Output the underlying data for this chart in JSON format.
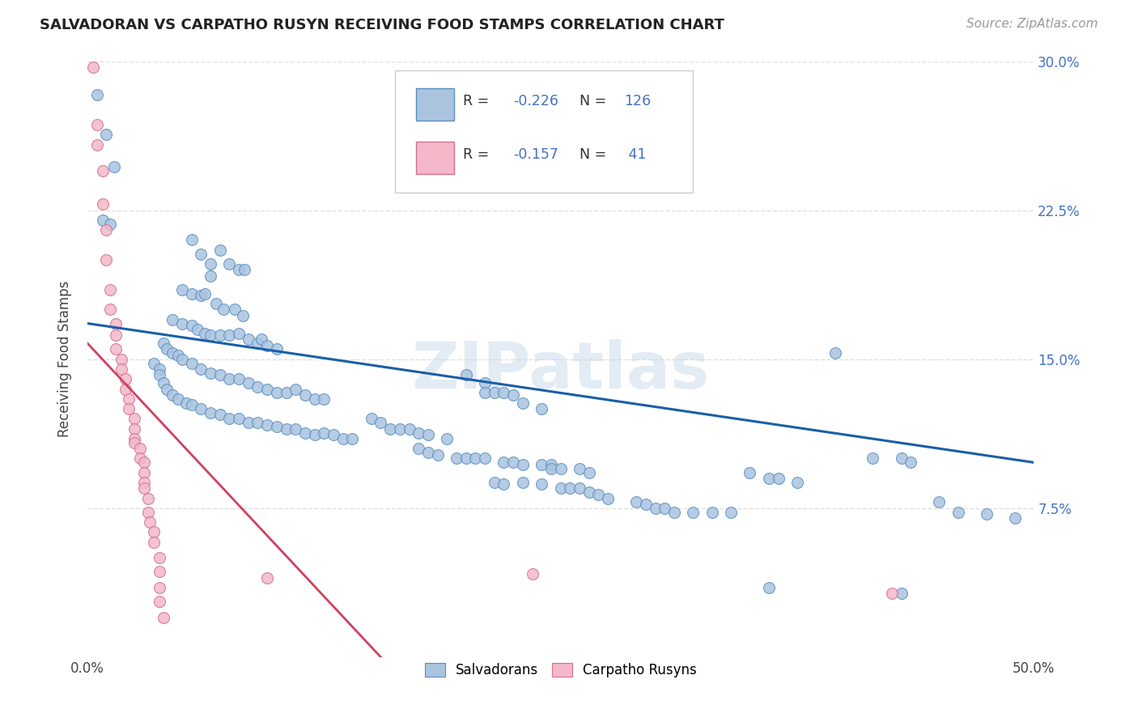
{
  "title": "SALVADORAN VS CARPATHO RUSYN RECEIVING FOOD STAMPS CORRELATION CHART",
  "source": "Source: ZipAtlas.com",
  "ylabel": "Receiving Food Stamps",
  "xlim": [
    0.0,
    0.5
  ],
  "ylim": [
    0.0,
    0.3
  ],
  "background_color": "#ffffff",
  "grid_color": "#e0e0e0",
  "watermark": "ZIPatlas",
  "blue_color": "#aac4e0",
  "blue_edge_color": "#5a8fc0",
  "pink_color": "#f4b8c8",
  "pink_edge_color": "#d07090",
  "blue_line_color": "#1a5fa8",
  "pink_line_color": "#d04060",
  "blue_scatter": [
    [
      0.005,
      0.283
    ],
    [
      0.01,
      0.263
    ],
    [
      0.014,
      0.247
    ],
    [
      0.008,
      0.22
    ],
    [
      0.012,
      0.218
    ],
    [
      0.055,
      0.21
    ],
    [
      0.06,
      0.203
    ],
    [
      0.065,
      0.198
    ],
    [
      0.065,
      0.192
    ],
    [
      0.07,
      0.205
    ],
    [
      0.075,
      0.198
    ],
    [
      0.08,
      0.195
    ],
    [
      0.083,
      0.195
    ],
    [
      0.05,
      0.185
    ],
    [
      0.055,
      0.183
    ],
    [
      0.06,
      0.182
    ],
    [
      0.062,
      0.183
    ],
    [
      0.068,
      0.178
    ],
    [
      0.072,
      0.175
    ],
    [
      0.078,
      0.175
    ],
    [
      0.082,
      0.172
    ],
    [
      0.045,
      0.17
    ],
    [
      0.05,
      0.168
    ],
    [
      0.055,
      0.167
    ],
    [
      0.058,
      0.165
    ],
    [
      0.062,
      0.163
    ],
    [
      0.065,
      0.162
    ],
    [
      0.07,
      0.162
    ],
    [
      0.075,
      0.162
    ],
    [
      0.08,
      0.163
    ],
    [
      0.085,
      0.16
    ],
    [
      0.09,
      0.158
    ],
    [
      0.092,
      0.16
    ],
    [
      0.095,
      0.157
    ],
    [
      0.1,
      0.155
    ],
    [
      0.04,
      0.158
    ],
    [
      0.042,
      0.155
    ],
    [
      0.045,
      0.153
    ],
    [
      0.048,
      0.152
    ],
    [
      0.05,
      0.15
    ],
    [
      0.055,
      0.148
    ],
    [
      0.06,
      0.145
    ],
    [
      0.065,
      0.143
    ],
    [
      0.07,
      0.142
    ],
    [
      0.075,
      0.14
    ],
    [
      0.08,
      0.14
    ],
    [
      0.085,
      0.138
    ],
    [
      0.09,
      0.136
    ],
    [
      0.095,
      0.135
    ],
    [
      0.1,
      0.133
    ],
    [
      0.105,
      0.133
    ],
    [
      0.11,
      0.135
    ],
    [
      0.115,
      0.132
    ],
    [
      0.12,
      0.13
    ],
    [
      0.125,
      0.13
    ],
    [
      0.035,
      0.148
    ],
    [
      0.038,
      0.145
    ],
    [
      0.038,
      0.142
    ],
    [
      0.04,
      0.138
    ],
    [
      0.042,
      0.135
    ],
    [
      0.045,
      0.132
    ],
    [
      0.048,
      0.13
    ],
    [
      0.052,
      0.128
    ],
    [
      0.055,
      0.127
    ],
    [
      0.06,
      0.125
    ],
    [
      0.065,
      0.123
    ],
    [
      0.07,
      0.122
    ],
    [
      0.075,
      0.12
    ],
    [
      0.08,
      0.12
    ],
    [
      0.085,
      0.118
    ],
    [
      0.09,
      0.118
    ],
    [
      0.095,
      0.117
    ],
    [
      0.1,
      0.116
    ],
    [
      0.105,
      0.115
    ],
    [
      0.11,
      0.115
    ],
    [
      0.115,
      0.113
    ],
    [
      0.12,
      0.112
    ],
    [
      0.125,
      0.113
    ],
    [
      0.13,
      0.112
    ],
    [
      0.135,
      0.11
    ],
    [
      0.14,
      0.11
    ],
    [
      0.15,
      0.12
    ],
    [
      0.155,
      0.118
    ],
    [
      0.16,
      0.115
    ],
    [
      0.165,
      0.115
    ],
    [
      0.17,
      0.115
    ],
    [
      0.175,
      0.113
    ],
    [
      0.18,
      0.112
    ],
    [
      0.19,
      0.11
    ],
    [
      0.2,
      0.142
    ],
    [
      0.21,
      0.138
    ],
    [
      0.21,
      0.133
    ],
    [
      0.215,
      0.133
    ],
    [
      0.22,
      0.133
    ],
    [
      0.225,
      0.132
    ],
    [
      0.23,
      0.128
    ],
    [
      0.24,
      0.125
    ],
    [
      0.175,
      0.105
    ],
    [
      0.18,
      0.103
    ],
    [
      0.185,
      0.102
    ],
    [
      0.195,
      0.1
    ],
    [
      0.2,
      0.1
    ],
    [
      0.205,
      0.1
    ],
    [
      0.21,
      0.1
    ],
    [
      0.22,
      0.098
    ],
    [
      0.225,
      0.098
    ],
    [
      0.23,
      0.097
    ],
    [
      0.24,
      0.097
    ],
    [
      0.245,
      0.097
    ],
    [
      0.245,
      0.095
    ],
    [
      0.25,
      0.095
    ],
    [
      0.26,
      0.095
    ],
    [
      0.265,
      0.093
    ],
    [
      0.215,
      0.088
    ],
    [
      0.22,
      0.087
    ],
    [
      0.23,
      0.088
    ],
    [
      0.24,
      0.087
    ],
    [
      0.25,
      0.085
    ],
    [
      0.255,
      0.085
    ],
    [
      0.26,
      0.085
    ],
    [
      0.265,
      0.083
    ],
    [
      0.27,
      0.082
    ],
    [
      0.275,
      0.08
    ],
    [
      0.29,
      0.078
    ],
    [
      0.295,
      0.077
    ],
    [
      0.3,
      0.075
    ],
    [
      0.305,
      0.075
    ],
    [
      0.31,
      0.073
    ],
    [
      0.32,
      0.073
    ],
    [
      0.33,
      0.073
    ],
    [
      0.34,
      0.073
    ],
    [
      0.35,
      0.093
    ],
    [
      0.36,
      0.09
    ],
    [
      0.365,
      0.09
    ],
    [
      0.375,
      0.088
    ],
    [
      0.395,
      0.153
    ],
    [
      0.415,
      0.1
    ],
    [
      0.43,
      0.1
    ],
    [
      0.435,
      0.098
    ],
    [
      0.45,
      0.078
    ],
    [
      0.46,
      0.073
    ],
    [
      0.475,
      0.072
    ],
    [
      0.49,
      0.07
    ],
    [
      0.36,
      0.035
    ],
    [
      0.43,
      0.032
    ]
  ],
  "pink_scatter": [
    [
      0.003,
      0.297
    ],
    [
      0.005,
      0.268
    ],
    [
      0.005,
      0.258
    ],
    [
      0.008,
      0.245
    ],
    [
      0.008,
      0.228
    ],
    [
      0.01,
      0.215
    ],
    [
      0.01,
      0.2
    ],
    [
      0.012,
      0.185
    ],
    [
      0.012,
      0.175
    ],
    [
      0.015,
      0.168
    ],
    [
      0.015,
      0.162
    ],
    [
      0.015,
      0.155
    ],
    [
      0.018,
      0.15
    ],
    [
      0.018,
      0.145
    ],
    [
      0.02,
      0.14
    ],
    [
      0.02,
      0.135
    ],
    [
      0.022,
      0.13
    ],
    [
      0.022,
      0.125
    ],
    [
      0.025,
      0.12
    ],
    [
      0.025,
      0.115
    ],
    [
      0.025,
      0.11
    ],
    [
      0.025,
      0.108
    ],
    [
      0.028,
      0.105
    ],
    [
      0.028,
      0.1
    ],
    [
      0.03,
      0.098
    ],
    [
      0.03,
      0.093
    ],
    [
      0.03,
      0.088
    ],
    [
      0.03,
      0.085
    ],
    [
      0.032,
      0.08
    ],
    [
      0.032,
      0.073
    ],
    [
      0.033,
      0.068
    ],
    [
      0.035,
      0.063
    ],
    [
      0.035,
      0.058
    ],
    [
      0.038,
      0.05
    ],
    [
      0.038,
      0.043
    ],
    [
      0.038,
      0.035
    ],
    [
      0.038,
      0.028
    ],
    [
      0.04,
      0.02
    ],
    [
      0.095,
      0.04
    ],
    [
      0.235,
      0.042
    ],
    [
      0.425,
      0.032
    ]
  ],
  "blue_trendline": [
    [
      0.0,
      0.168
    ],
    [
      0.5,
      0.098
    ]
  ],
  "pink_trendline_solid": [
    [
      0.0,
      0.158
    ],
    [
      0.155,
      0.0
    ]
  ],
  "pink_trendline_dashed": [
    [
      0.155,
      0.0
    ],
    [
      0.5,
      -0.1
    ]
  ]
}
